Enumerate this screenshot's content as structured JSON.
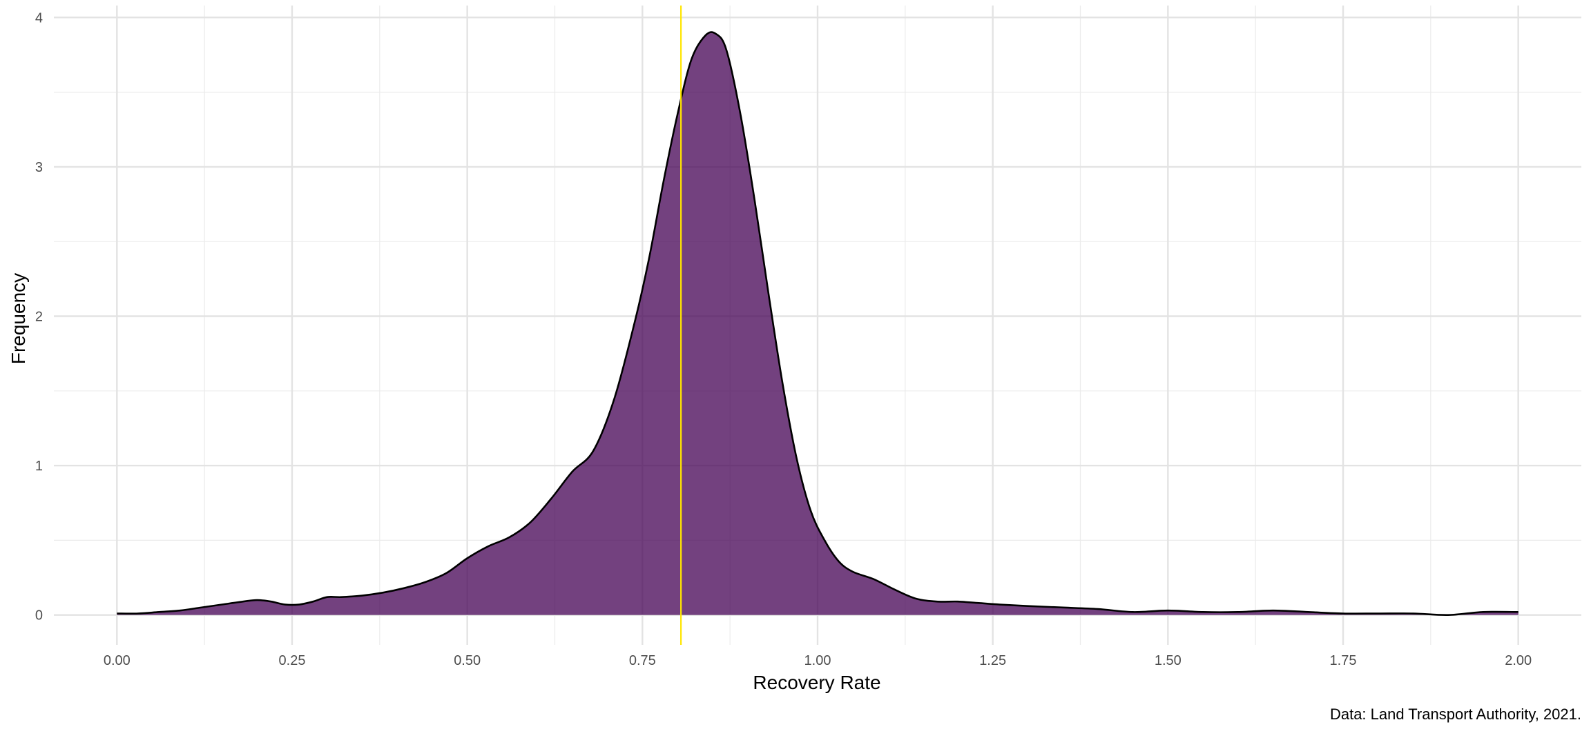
{
  "chart_data": {
    "type": "area",
    "title": "",
    "xlabel": "Recovery Rate",
    "ylabel": "Frequency",
    "caption": "Data: Land Transport Authority, 2021.",
    "xlim": [
      -0.09,
      2.09
    ],
    "ylim": [
      -0.2,
      4.08
    ],
    "x_ticks": [
      0.0,
      0.25,
      0.5,
      0.75,
      1.0,
      1.25,
      1.5,
      1.75,
      2.0
    ],
    "x_tick_labels": [
      "0.00",
      "0.25",
      "0.50",
      "0.75",
      "1.00",
      "1.25",
      "1.50",
      "1.75",
      "2.00"
    ],
    "y_ticks": [
      0,
      1,
      2,
      3,
      4
    ],
    "y_tick_labels": [
      "0",
      "1",
      "2",
      "3",
      "4"
    ],
    "grid": true,
    "legend": "none",
    "fill_color": "#440154",
    "fill_opacity": 0.75,
    "line_color": "#000000",
    "reference_line": {
      "x": 0.805,
      "color": "#FFE600"
    },
    "series": [
      {
        "x": [
          0.0,
          0.03,
          0.06,
          0.09,
          0.12,
          0.15,
          0.18,
          0.2,
          0.22,
          0.24,
          0.26,
          0.28,
          0.3,
          0.32,
          0.35,
          0.38,
          0.41,
          0.44,
          0.47,
          0.5,
          0.53,
          0.56,
          0.59,
          0.62,
          0.65,
          0.68,
          0.71,
          0.74,
          0.76,
          0.78,
          0.8,
          0.82,
          0.84,
          0.855,
          0.87,
          0.89,
          0.91,
          0.93,
          0.95,
          0.97,
          0.99,
          1.01,
          1.03,
          1.05,
          1.08,
          1.11,
          1.14,
          1.17,
          1.2,
          1.23,
          1.26,
          1.3,
          1.35,
          1.4,
          1.45,
          1.5,
          1.55,
          1.6,
          1.65,
          1.7,
          1.75,
          1.8,
          1.85,
          1.9,
          1.95,
          2.0
        ],
        "y": [
          0.01,
          0.01,
          0.02,
          0.03,
          0.05,
          0.07,
          0.09,
          0.1,
          0.09,
          0.07,
          0.07,
          0.09,
          0.12,
          0.12,
          0.13,
          0.15,
          0.18,
          0.22,
          0.28,
          0.38,
          0.46,
          0.52,
          0.62,
          0.78,
          0.96,
          1.1,
          1.45,
          1.98,
          2.4,
          2.9,
          3.35,
          3.72,
          3.88,
          3.89,
          3.78,
          3.35,
          2.78,
          2.15,
          1.55,
          1.05,
          0.7,
          0.5,
          0.36,
          0.29,
          0.24,
          0.17,
          0.11,
          0.09,
          0.09,
          0.08,
          0.07,
          0.06,
          0.05,
          0.04,
          0.02,
          0.03,
          0.02,
          0.02,
          0.03,
          0.02,
          0.01,
          0.01,
          0.01,
          0.0,
          0.02,
          0.02
        ]
      }
    ]
  }
}
